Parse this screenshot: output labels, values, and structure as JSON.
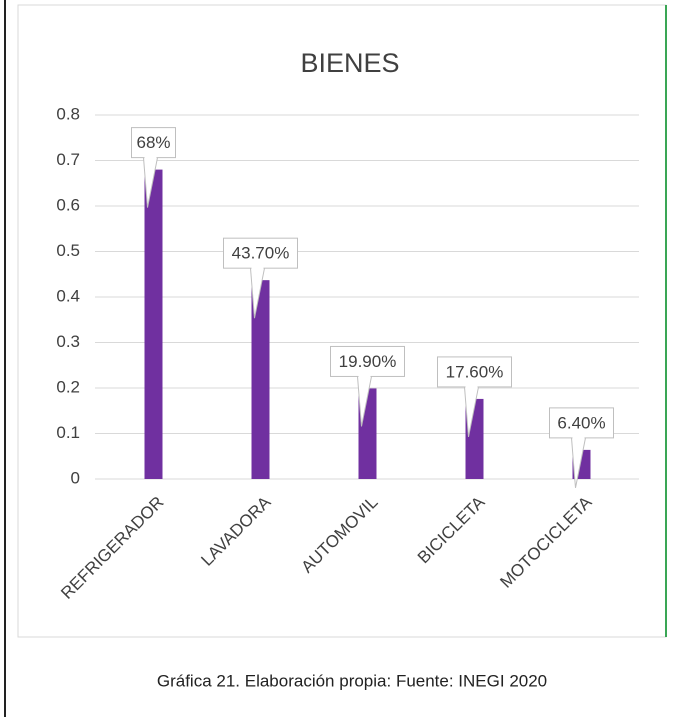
{
  "chart_data": {
    "type": "bar",
    "title": "BIENES",
    "categories": [
      "REFRIGERADOR",
      "LAVADORA",
      "AUTOMOVIL",
      "BICICLETA",
      "MOTOCICLETA"
    ],
    "values": [
      0.68,
      0.437,
      0.199,
      0.176,
      0.064
    ],
    "value_labels": [
      "68%",
      "43.70%",
      "19.90%",
      "17.60%",
      "6.40%"
    ],
    "color": "#7030a0",
    "ylim": [
      0,
      0.8
    ],
    "yticks": [
      0,
      0.1,
      0.2,
      0.3,
      0.4,
      0.5,
      0.6,
      0.7,
      0.8
    ],
    "grid": true
  },
  "caption": "Gráfica 21. Elaboración propia: Fuente: INEGI 2020"
}
